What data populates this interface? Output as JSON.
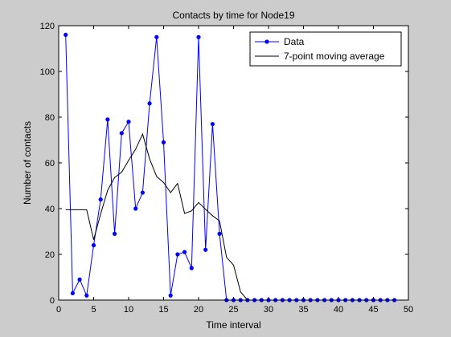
{
  "chart_data": {
    "type": "line",
    "title": "Contacts by time for Node19",
    "xlabel": "Time interval",
    "ylabel": "Number of contacts",
    "xlim": [
      0,
      50
    ],
    "ylim": [
      0,
      120
    ],
    "xticks": [
      0,
      5,
      10,
      15,
      20,
      25,
      30,
      35,
      40,
      45,
      50
    ],
    "yticks": [
      0,
      20,
      40,
      60,
      80,
      100,
      120
    ],
    "grid": false,
    "legend_position": "top-right",
    "series": [
      {
        "name": "Data",
        "color": "#0000ff",
        "marker": "dot",
        "x": [
          1,
          2,
          3,
          4,
          5,
          6,
          7,
          8,
          9,
          10,
          11,
          12,
          13,
          14,
          15,
          16,
          17,
          18,
          19,
          20,
          21,
          22,
          23,
          24,
          25,
          26,
          27,
          28,
          29,
          30,
          31,
          32,
          33,
          34,
          35,
          36,
          37,
          38,
          39,
          40,
          41,
          42,
          43,
          44,
          45,
          46,
          47,
          48
        ],
        "values": [
          116,
          3,
          9,
          2,
          24,
          44,
          79,
          29,
          73,
          78,
          40,
          47,
          86,
          115,
          69,
          2,
          20,
          21,
          14,
          115,
          22,
          77,
          29,
          0,
          0,
          0,
          0,
          0,
          0,
          0,
          0,
          0,
          0,
          0,
          0,
          0,
          0,
          0,
          0,
          0,
          0,
          0,
          0,
          0,
          0,
          0,
          0,
          0
        ]
      },
      {
        "name": "7-point moving average",
        "color": "#000000",
        "marker": "none",
        "x": [
          1,
          2,
          3,
          4,
          5,
          6,
          7,
          8,
          9,
          10,
          11,
          12,
          13,
          14,
          15,
          16,
          17,
          18,
          19,
          20,
          21,
          22,
          23,
          24,
          25,
          26,
          27,
          28,
          29,
          30,
          31,
          32,
          33,
          34,
          35,
          36,
          37,
          38,
          39,
          40,
          41,
          42,
          43,
          44,
          45,
          46,
          47,
          48
        ],
        "values": [
          39.5,
          39.5,
          39.5,
          39.5,
          26.4,
          37.7,
          48,
          53.6,
          55.9,
          61.1,
          66,
          72.6,
          61.7,
          54.1,
          51.4,
          47,
          51,
          37.9,
          39,
          42.7,
          39.7,
          36.9,
          34.6,
          18.7,
          15.3,
          3.6,
          0,
          0,
          0,
          0,
          0,
          0,
          0,
          0,
          0,
          0,
          0,
          0,
          0,
          0,
          0,
          0,
          0,
          0,
          0,
          0,
          0,
          0
        ]
      }
    ]
  }
}
